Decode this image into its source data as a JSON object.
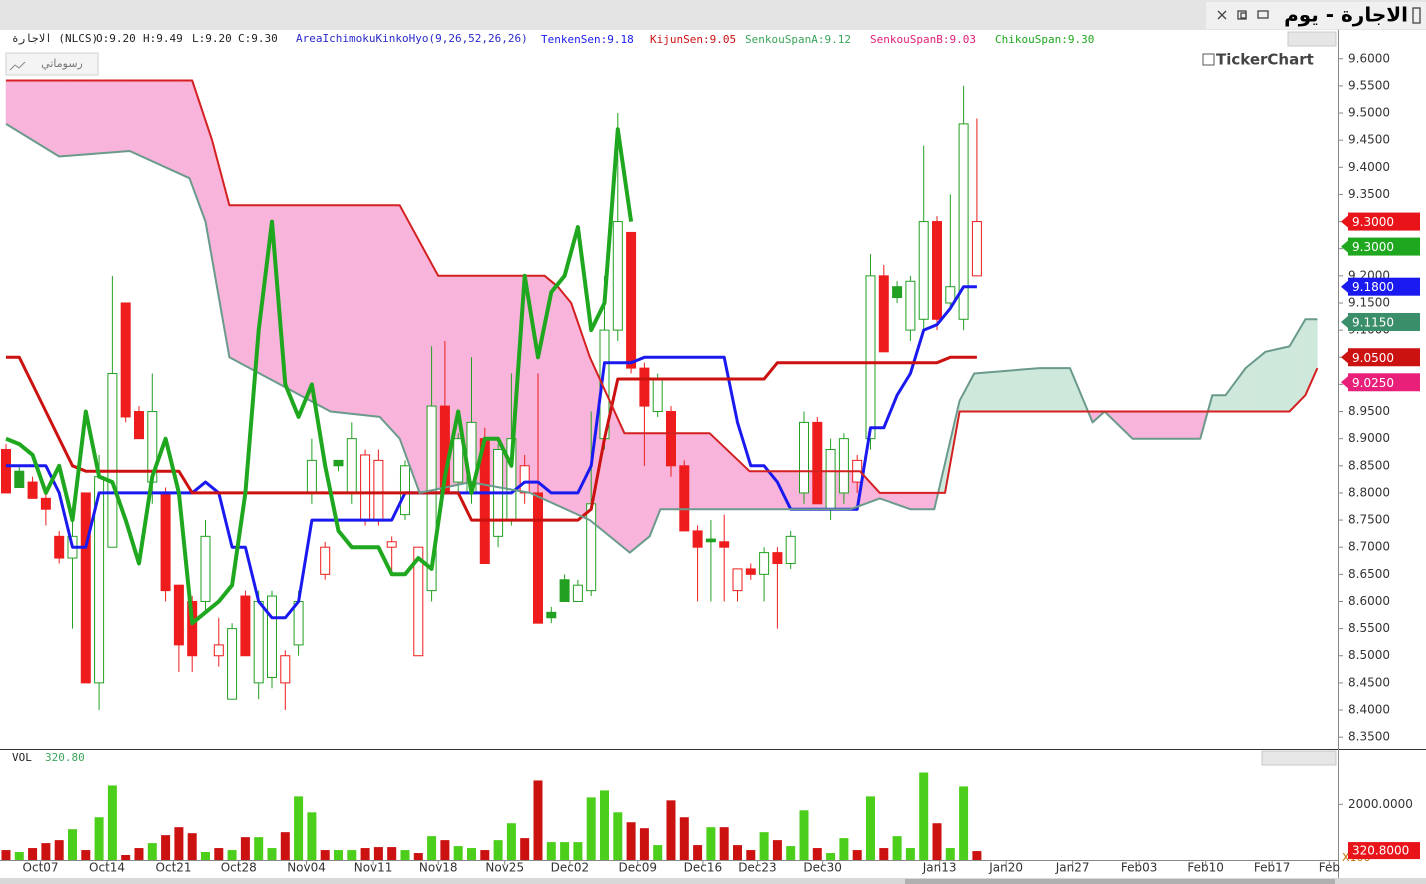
{
  "header": {
    "title": "الاجارة - يوم"
  },
  "chart_data": {
    "type": "candlestick",
    "symbol": "الاجارة (NLCS)",
    "ohlc_labels": [
      "O:9.20",
      "H:9.49",
      "L:9.20",
      "C:9.30"
    ],
    "indicator": "AreaIchimokuKinkoHyo(9,26,52,26,26)",
    "drawings_button": "رسوماتي",
    "watermark": "TickerChart",
    "up_color": "#22a022",
    "down_color": "#ee1c1c",
    "cloud_colors": {
      "bullish": "#cfe8dc",
      "bearish": "#f8b4da"
    },
    "x": [
      0,
      1,
      2,
      3,
      4,
      5,
      6,
      7,
      8,
      9,
      10,
      11,
      12,
      13,
      14,
      15,
      16,
      17,
      18,
      19,
      20,
      21,
      22,
      23,
      24,
      25,
      26,
      27,
      28,
      29,
      30,
      31,
      32,
      33,
      34,
      35,
      36,
      37,
      38,
      39,
      40,
      41,
      42,
      43,
      44,
      45,
      46,
      47,
      48,
      49,
      50,
      51,
      52,
      53,
      54,
      55,
      56,
      57,
      58,
      59,
      60,
      61,
      62,
      63,
      64,
      65,
      66,
      67,
      68,
      69,
      70,
      71,
      72,
      73
    ],
    "open": [
      8.88,
      8.84,
      8.82,
      8.79,
      8.72,
      8.68,
      8.8,
      8.45,
      8.7,
      9.15,
      8.95,
      8.82,
      8.8,
      8.63,
      8.6,
      8.6,
      8.5,
      8.42,
      8.61,
      8.45,
      8.46,
      8.45,
      8.52,
      8.8,
      8.65,
      8.86,
      8.8,
      8.75,
      8.75,
      8.7,
      8.76,
      8.5,
      8.62,
      8.96,
      8.82,
      8.8,
      8.9,
      8.72,
      8.75,
      8.8,
      8.8,
      8.58,
      8.64,
      8.6,
      8.62,
      8.9,
      9.1,
      9.28,
      9.03,
      8.95,
      8.95,
      8.85,
      8.73,
      8.715,
      8.71,
      8.62,
      8.66,
      8.65,
      8.69,
      8.67,
      8.8,
      8.93,
      8.77,
      8.8,
      8.82,
      8.9,
      9.2,
      9.18,
      9.1,
      9.12,
      9.3,
      9.15,
      9.12,
      9.2
    ],
    "high": [
      8.89,
      8.85,
      8.83,
      8.8,
      8.73,
      8.75,
      8.8,
      8.87,
      9.2,
      9.15,
      8.96,
      9.02,
      8.81,
      8.63,
      8.61,
      8.75,
      8.57,
      8.56,
      8.62,
      8.62,
      8.62,
      8.51,
      8.62,
      8.9,
      8.71,
      8.86,
      8.93,
      8.88,
      8.88,
      8.72,
      8.86,
      8.7,
      9.07,
      9.08,
      8.91,
      9.05,
      8.92,
      8.89,
      9.02,
      8.87,
      9.02,
      8.59,
      8.65,
      8.64,
      8.95,
      9.2,
      9.5,
      9.28,
      9.04,
      9.02,
      8.96,
      8.86,
      8.74,
      8.75,
      8.76,
      8.66,
      8.67,
      8.7,
      8.7,
      8.73,
      8.95,
      8.94,
      8.9,
      8.91,
      8.87,
      9.24,
      9.22,
      9.19,
      9.2,
      9.44,
      9.31,
      9.35,
      9.55,
      9.49
    ],
    "low": [
      8.8,
      8.81,
      8.79,
      8.74,
      8.67,
      8.55,
      8.45,
      8.4,
      8.7,
      8.93,
      8.9,
      8.78,
      8.6,
      8.47,
      8.47,
      8.58,
      8.48,
      8.42,
      8.5,
      8.42,
      8.44,
      8.4,
      8.5,
      8.78,
      8.64,
      8.84,
      8.78,
      8.74,
      8.74,
      8.65,
      8.75,
      8.5,
      8.6,
      8.8,
      8.8,
      8.78,
      8.67,
      8.7,
      8.74,
      8.78,
      8.56,
      8.56,
      8.6,
      8.6,
      8.61,
      8.88,
      9.08,
      9.02,
      8.85,
      8.94,
      8.83,
      8.73,
      8.6,
      8.6,
      8.6,
      8.6,
      8.64,
      8.6,
      8.55,
      8.66,
      8.78,
      8.78,
      8.75,
      8.78,
      8.8,
      8.88,
      9.06,
      9.15,
      9.08,
      9.1,
      9.1,
      9.14,
      9.1,
      9.2
    ],
    "close": [
      8.8,
      8.81,
      8.79,
      8.77,
      8.68,
      8.72,
      8.45,
      8.83,
      9.02,
      8.94,
      8.9,
      8.95,
      8.62,
      8.52,
      8.5,
      8.72,
      8.52,
      8.55,
      8.5,
      8.6,
      8.61,
      8.5,
      8.6,
      8.86,
      8.7,
      8.85,
      8.9,
      8.87,
      8.86,
      8.71,
      8.85,
      8.7,
      8.96,
      8.8,
      8.9,
      8.93,
      8.67,
      8.88,
      8.9,
      8.85,
      8.56,
      8.57,
      8.6,
      8.63,
      8.78,
      9.1,
      9.3,
      9.03,
      8.96,
      9.01,
      8.85,
      8.73,
      8.7,
      8.71,
      8.7,
      8.66,
      8.65,
      8.69,
      8.67,
      8.72,
      8.93,
      8.78,
      8.88,
      8.9,
      8.86,
      9.2,
      9.06,
      9.16,
      9.19,
      9.3,
      9.12,
      9.18,
      9.48,
      9.3
    ],
    "xlim": [
      -0.45,
      100.15
    ],
    "xticks": [
      {
        "value": 2.6,
        "label": "Oct07"
      },
      {
        "value": 7.6,
        "label": "Oct14"
      },
      {
        "value": 12.6,
        "label": "Oct21"
      },
      {
        "value": 17.5,
        "label": "Oct28"
      },
      {
        "value": 22.6,
        "label": "Nov04"
      },
      {
        "value": 27.6,
        "label": "Nov11"
      },
      {
        "value": 32.5,
        "label": "Nov18"
      },
      {
        "value": 37.5,
        "label": "Nov25"
      },
      {
        "value": 42.4,
        "label": "Dec02"
      },
      {
        "value": 47.5,
        "label": "Dec09"
      },
      {
        "value": 52.4,
        "label": "Dec16"
      },
      {
        "value": 56.5,
        "label": "Dec23"
      },
      {
        "value": 61.4,
        "label": "Dec30"
      },
      {
        "value": 70.2,
        "label": "Jan13"
      },
      {
        "value": 75.2,
        "label": "Jan20"
      },
      {
        "value": 80.2,
        "label": "Jan27"
      },
      {
        "value": 85.2,
        "label": "Feb03"
      },
      {
        "value": 90.2,
        "label": "Feb10"
      },
      {
        "value": 95.2,
        "label": "Feb17"
      },
      {
        "value": 99.5,
        "label": "Feb"
      }
    ],
    "ylim": [
      8.33,
      9.653
    ],
    "yticks": [
      {
        "value": 9.6,
        "label": "9.6000"
      },
      {
        "value": 9.55,
        "label": "9.5500"
      },
      {
        "value": 9.5,
        "label": "9.5000"
      },
      {
        "value": 9.45,
        "label": "9.4500"
      },
      {
        "value": 9.4,
        "label": "9.4000"
      },
      {
        "value": 9.35,
        "label": "9.3500"
      },
      {
        "value": 9.3,
        "label": "9.3000"
      },
      {
        "value": 9.25,
        "label": "9.2500"
      },
      {
        "value": 9.2,
        "label": "9.2000"
      },
      {
        "value": 9.15,
        "label": "9.1500"
      },
      {
        "value": 9.1,
        "label": "9.1000"
      },
      {
        "value": 9.05,
        "label": "9.0500"
      },
      {
        "value": 9.0,
        "label": "9.0000"
      },
      {
        "value": 8.95,
        "label": "8.9500"
      },
      {
        "value": 8.9,
        "label": "8.9000"
      },
      {
        "value": 8.85,
        "label": "8.8500"
      },
      {
        "value": 8.8,
        "label": "8.8000"
      },
      {
        "value": 8.75,
        "label": "8.7500"
      },
      {
        "value": 8.7,
        "label": "8.7000"
      },
      {
        "value": 8.65,
        "label": "8.6500"
      },
      {
        "value": 8.6,
        "label": "8.6000"
      },
      {
        "value": 8.55,
        "label": "8.5500"
      },
      {
        "value": 8.5,
        "label": "8.5000"
      },
      {
        "value": 8.45,
        "label": "8.4500"
      },
      {
        "value": 8.4,
        "label": "8.4000"
      },
      {
        "value": 8.35,
        "label": "8.3500"
      }
    ],
    "lines": [
      {
        "name": "TenkenSen:9.18",
        "color": "#1a1af0",
        "label_color": "#1a1af0",
        "width": 3,
        "values": [
          8.85,
          8.85,
          8.85,
          8.85,
          8.8,
          8.7,
          8.7,
          8.8,
          8.8,
          8.8,
          8.8,
          8.8,
          8.8,
          8.8,
          8.8,
          8.82,
          8.8,
          8.7,
          8.7,
          8.6,
          8.57,
          8.57,
          8.6,
          8.75,
          8.75,
          8.75,
          8.75,
          8.75,
          8.75,
          8.75,
          8.8,
          8.8,
          8.8,
          8.8,
          8.8,
          8.8,
          8.8,
          8.8,
          8.8,
          8.82,
          8.82,
          8.8,
          8.8,
          8.8,
          8.85,
          9.04,
          9.04,
          9.04,
          9.05,
          9.05,
          9.05,
          9.05,
          9.05,
          9.05,
          9.05,
          8.93,
          8.85,
          8.85,
          8.82,
          8.77,
          8.77,
          8.77,
          8.77,
          8.77,
          8.77,
          8.92,
          8.92,
          8.98,
          9.02,
          9.1,
          9.11,
          9.14,
          9.18,
          9.18
        ]
      },
      {
        "name": "KijunSen:9.05",
        "color": "#cc1111",
        "label_color": "#cc1111",
        "width": 3,
        "values": [
          9.05,
          9.05,
          9.0,
          8.95,
          8.9,
          8.85,
          8.84,
          8.84,
          8.84,
          8.84,
          8.84,
          8.84,
          8.84,
          8.84,
          8.8,
          8.8,
          8.8,
          8.8,
          8.8,
          8.8,
          8.8,
          8.8,
          8.8,
          8.8,
          8.8,
          8.8,
          8.8,
          8.8,
          8.8,
          8.8,
          8.8,
          8.8,
          8.8,
          8.8,
          8.8,
          8.75,
          8.75,
          8.75,
          8.75,
          8.75,
          8.75,
          8.75,
          8.75,
          8.75,
          8.77,
          8.9,
          9.01,
          9.01,
          9.01,
          9.01,
          9.01,
          9.01,
          9.01,
          9.01,
          9.01,
          9.01,
          9.01,
          9.01,
          9.04,
          9.04,
          9.04,
          9.04,
          9.04,
          9.04,
          9.04,
          9.04,
          9.04,
          9.04,
          9.04,
          9.04,
          9.04,
          9.05,
          9.05,
          9.05
        ]
      },
      {
        "name": "SenkouSpanA:9.12",
        "color": "#6a9a8c",
        "label_color": "#3aa55a",
        "width": 2,
        "span": "a",
        "x": [
          0,
          4,
          9.3,
          13.8,
          15,
          16.8,
          20.6,
          24.4,
          28.1,
          29.6,
          31.1,
          34.9,
          39.4,
          43.9,
          46.9,
          48.4,
          49.2,
          58.2,
          63.5,
          65.7,
          68,
          69.8,
          71.7,
          72.8,
          77.7,
          80,
          81.7,
          82.6,
          84.7,
          89.8,
          90.7,
          91.7,
          93.2,
          94.7,
          96.5,
          97.7,
          98.6
        ],
        "values": [
          9.48,
          9.42,
          9.43,
          9.38,
          9.3,
          9.05,
          9.0,
          8.95,
          8.94,
          8.9,
          8.8,
          8.82,
          8.8,
          8.75,
          8.69,
          8.72,
          8.77,
          8.77,
          8.77,
          8.79,
          8.77,
          8.77,
          8.97,
          9.02,
          9.03,
          9.03,
          8.93,
          8.95,
          8.9,
          8.9,
          8.98,
          8.98,
          9.03,
          9.06,
          9.07,
          9.12,
          9.12
        ]
      },
      {
        "name": "SenkouSpanB:9.03",
        "color": "#d42020",
        "label_color": "#e0207a",
        "width": 2,
        "span": "b",
        "x": [
          0,
          14,
          15.5,
          16.8,
          29.6,
          32.5,
          40.5,
          41.5,
          42.5,
          43.9,
          46.5,
          52.9,
          55.9,
          64.2,
          65.7,
          70.6,
          71.7,
          96.5,
          97.7,
          98.6
        ],
        "values": [
          9.56,
          9.56,
          9.45,
          9.33,
          9.33,
          9.2,
          9.2,
          9.18,
          9.15,
          9.05,
          8.91,
          8.91,
          8.84,
          8.84,
          8.8,
          8.8,
          8.95,
          8.95,
          8.98,
          9.03
        ]
      },
      {
        "name": "ChikouSpan:9.30",
        "color": "#1fa81f",
        "label_color": "#1fa81f",
        "width": 4,
        "values": [
          8.9,
          8.89,
          8.87,
          8.8,
          8.85,
          8.75,
          8.95,
          8.83,
          8.82,
          8.75,
          8.67,
          8.83,
          8.9,
          8.8,
          8.56,
          8.58,
          8.6,
          8.63,
          8.8,
          9.1,
          9.3,
          9.0,
          8.94,
          9.0,
          8.85,
          8.73,
          8.7,
          8.7,
          8.7,
          8.65,
          8.65,
          8.68,
          8.66,
          8.83,
          8.95,
          8.8,
          8.9,
          8.9,
          8.85,
          9.2,
          9.05,
          9.17,
          9.2,
          9.29,
          9.1,
          9.15,
          9.47,
          9.3
        ]
      }
    ],
    "price_tags": [
      {
        "value": 9.3,
        "label": "9.3000",
        "color": "#e8141a"
      },
      {
        "value": 9.3,
        "label": "9.3000",
        "color": "#1fa81f"
      },
      {
        "value": 9.18,
        "label": "9.1800",
        "color": "#1a1af0"
      },
      {
        "value": 9.115,
        "label": "9.1150",
        "color": "#3a8f6a"
      },
      {
        "value": 9.05,
        "label": "9.0500",
        "color": "#cc1111"
      },
      {
        "value": 9.025,
        "label": "9.0250",
        "color": "#e8207a"
      }
    ],
    "volume": {
      "title": "VOL",
      "value_label": "320.80",
      "multiplier": "X100",
      "ylim": [
        0,
        3700
      ],
      "yticks": [
        {
          "value": 2000,
          "label": "2000.0000"
        }
      ],
      "tag": {
        "value": 320.8,
        "label": "320.8000"
      },
      "values": [
        357,
        286,
        429,
        607,
        714,
        1107,
        357,
        1536,
        2679,
        179,
        429,
        607,
        893,
        1179,
        964,
        286,
        429,
        357,
        821,
        821,
        429,
        1000,
        2286,
        1714,
        357,
        357,
        357,
        429,
        464,
        464,
        357,
        250,
        857,
        714,
        500,
        429,
        357,
        714,
        1321,
        786,
        2857,
        643,
        643,
        643,
        2250,
        2500,
        1714,
        1357,
        1143,
        536,
        2143,
        1536,
        536,
        1179,
        1179,
        536,
        357,
        1000,
        714,
        500,
        1786,
        429,
        250,
        786,
        357,
        2286,
        429,
        857,
        429,
        3143,
        1321,
        429,
        2643,
        320.8
      ]
    }
  }
}
